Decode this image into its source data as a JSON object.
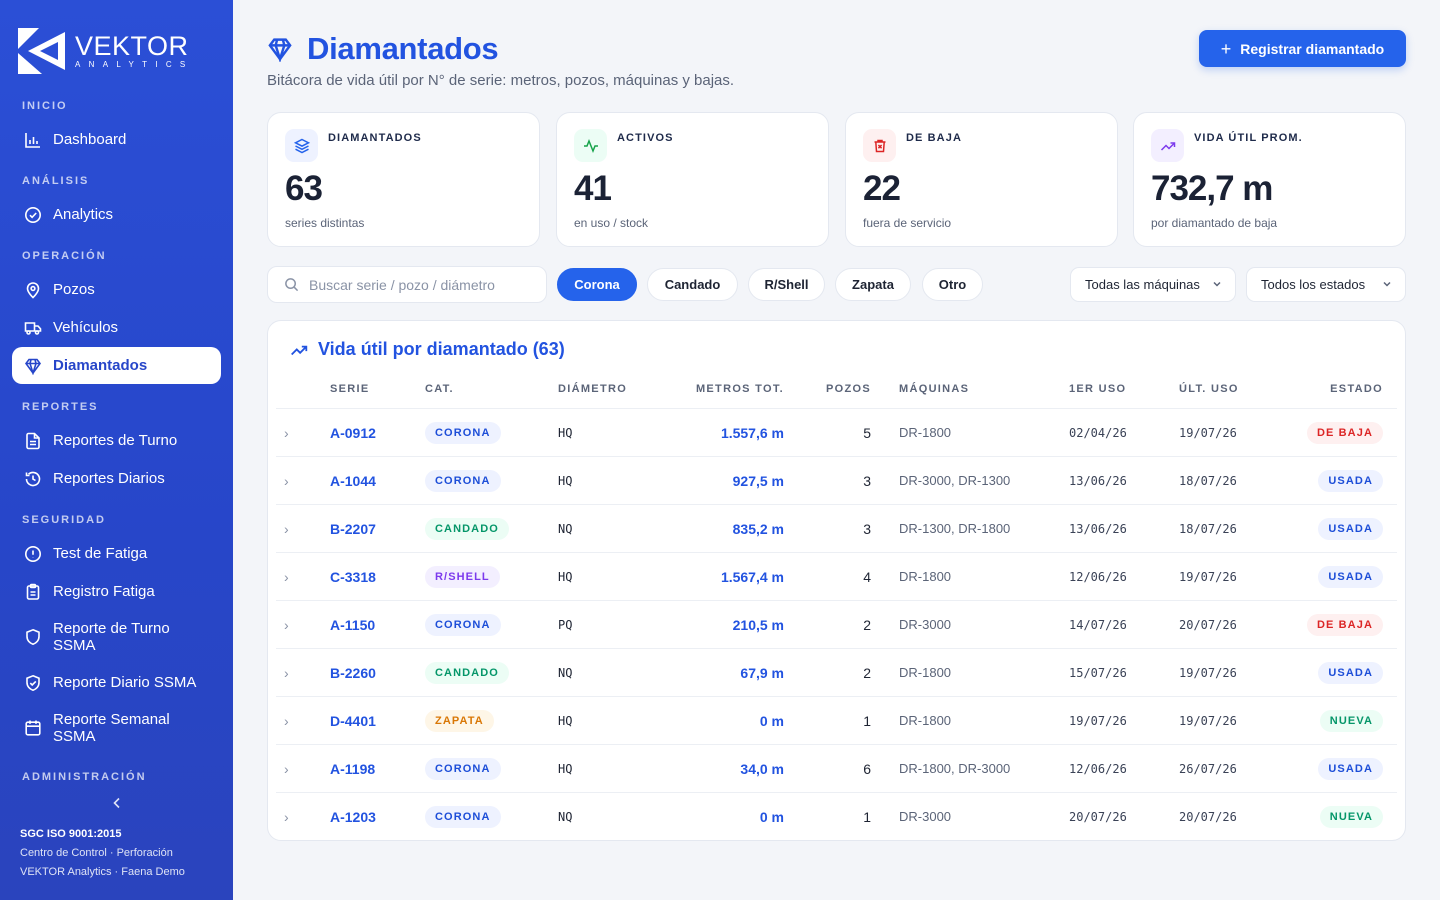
{
  "brand": {
    "name": "VEKTOR",
    "sub": "ANALYTICS"
  },
  "sidebar": {
    "sections": {
      "inicio": "INICIO",
      "analisis": "ANÁLISIS",
      "operacion": "OPERACIÓN",
      "reportes": "REPORTES",
      "seguridad": "SEGURIDAD",
      "administracion": "ADMINISTRACIÓN"
    },
    "items": {
      "dashboard": "Dashboard",
      "analytics": "Analytics",
      "pozos": "Pozos",
      "vehiculos": "Vehículos",
      "diamantados": "Diamantados",
      "reportes_turno": "Reportes de Turno",
      "reportes_diarios": "Reportes Diarios",
      "test_fatiga": "Test de Fatiga",
      "registro_fatiga": "Registro Fatiga",
      "reporte_turno_ssma": "Reporte de Turno SSMA",
      "reporte_diario_ssma": "Reporte Diario SSMA",
      "reporte_semanal_ssma": "Reporte Semanal SSMA"
    },
    "footer": {
      "line1": "SGC ISO 9001:2015",
      "line2": "Centro de Control · Perforación",
      "line3": "VEKTOR Analytics · Faena Demo"
    }
  },
  "header": {
    "title": "Diamantados",
    "subtitle": "Bitácora de vida útil por N° de serie: metros, pozos, máquinas y bajas.",
    "primary_button": "Registrar diamantado"
  },
  "kpis": [
    {
      "label": "DIAMANTADOS",
      "value": "63",
      "sub": "series distintas",
      "icon": "layers-icon",
      "color": "#2563eb"
    },
    {
      "label": "ACTIVOS",
      "value": "41",
      "sub": "en uso / stock",
      "icon": "activity-icon",
      "color": "#16a34a"
    },
    {
      "label": "DE BAJA",
      "value": "22",
      "sub": "fuera de servicio",
      "icon": "trash-icon",
      "color": "#dc2626"
    },
    {
      "label": "VIDA ÚTIL PROM.",
      "value": "732,7 m",
      "sub": "por diamantado de baja",
      "icon": "trending-up-icon",
      "color": "#7c3aed"
    }
  ],
  "filters": {
    "search_placeholder": "Buscar serie / pozo / diámetro",
    "chips": [
      "Corona",
      "Candado",
      "R/Shell",
      "Zapata",
      "Otro"
    ],
    "active_chip": "Corona",
    "machine_select": "Todas las máquinas",
    "status_select": "Todos los estados"
  },
  "table": {
    "title": "Vida útil por diamantado (63)",
    "headers": {
      "serie": "SERIE",
      "cat": "CAT.",
      "diametro": "DIÁMETRO",
      "metros": "METROS TOT.",
      "pozos": "POZOS",
      "maquinas": "MÁQUINAS",
      "primer_uso": "1ER USO",
      "ultimo_uso": "ÚLT. USO",
      "estado": "ESTADO"
    },
    "rows": [
      {
        "serie": "A-0912",
        "cat": "CORONA",
        "diametro": "HQ",
        "metros": "1.557,6 m",
        "pozos": "5",
        "maquinas": "DR-1800",
        "primer_uso": "02/04/26",
        "ultimo_uso": "19/07/26",
        "estado": "DE BAJA"
      },
      {
        "serie": "A-1044",
        "cat": "CORONA",
        "diametro": "HQ",
        "metros": "927,5 m",
        "pozos": "3",
        "maquinas": "DR-3000, DR-1300",
        "primer_uso": "13/06/26",
        "ultimo_uso": "18/07/26",
        "estado": "USADA"
      },
      {
        "serie": "B-2207",
        "cat": "CANDADO",
        "diametro": "NQ",
        "metros": "835,2 m",
        "pozos": "3",
        "maquinas": "DR-1300, DR-1800",
        "primer_uso": "13/06/26",
        "ultimo_uso": "18/07/26",
        "estado": "USADA"
      },
      {
        "serie": "C-3318",
        "cat": "R/SHELL",
        "diametro": "HQ",
        "metros": "1.567,4 m",
        "pozos": "4",
        "maquinas": "DR-1800",
        "primer_uso": "12/06/26",
        "ultimo_uso": "19/07/26",
        "estado": "USADA"
      },
      {
        "serie": "A-1150",
        "cat": "CORONA",
        "diametro": "PQ",
        "metros": "210,5 m",
        "pozos": "2",
        "maquinas": "DR-3000",
        "primer_uso": "14/07/26",
        "ultimo_uso": "20/07/26",
        "estado": "DE BAJA"
      },
      {
        "serie": "B-2260",
        "cat": "CANDADO",
        "diametro": "NQ",
        "metros": "67,9 m",
        "pozos": "2",
        "maquinas": "DR-1800",
        "primer_uso": "15/07/26",
        "ultimo_uso": "19/07/26",
        "estado": "USADA"
      },
      {
        "serie": "D-4401",
        "cat": "ZAPATA",
        "diametro": "HQ",
        "metros": "0 m",
        "pozos": "1",
        "maquinas": "DR-1800",
        "primer_uso": "19/07/26",
        "ultimo_uso": "19/07/26",
        "estado": "NUEVA"
      },
      {
        "serie": "A-1198",
        "cat": "CORONA",
        "diametro": "HQ",
        "metros": "34,0 m",
        "pozos": "6",
        "maquinas": "DR-1800, DR-3000",
        "primer_uso": "12/06/26",
        "ultimo_uso": "26/07/26",
        "estado": "USADA"
      },
      {
        "serie": "A-1203",
        "cat": "CORONA",
        "diametro": "NQ",
        "metros": "0 m",
        "pozos": "1",
        "maquinas": "DR-3000",
        "primer_uso": "20/07/26",
        "ultimo_uso": "20/07/26",
        "estado": "NUEVA"
      }
    ]
  },
  "colors": {
    "accent": "#2563eb",
    "sidebar": "#2746c9",
    "cat": {
      "CORONA": {
        "fg": "#1d4ed8",
        "bg": "#eef2ff"
      },
      "CANDADO": {
        "fg": "#059669",
        "bg": "#ecfdf5"
      },
      "R/SHELL": {
        "fg": "#7c3aed",
        "bg": "#f3efff"
      },
      "ZAPATA": {
        "fg": "#d97706",
        "bg": "#fef6e7"
      }
    },
    "estado": {
      "DE BAJA": {
        "fg": "#dc2626",
        "bg": "#fef0f0"
      },
      "USADA": {
        "fg": "#1d4ed8",
        "bg": "#eef2ff"
      },
      "NUEVA": {
        "fg": "#059669",
        "bg": "#ecfdf5"
      }
    }
  }
}
